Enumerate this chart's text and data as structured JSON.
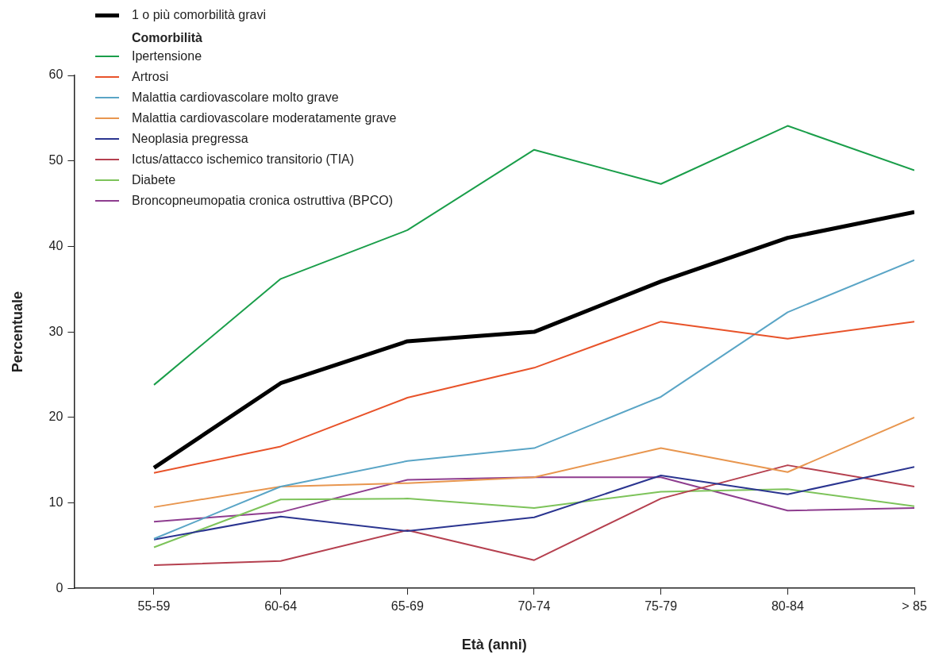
{
  "chart_data": {
    "type": "line",
    "xlabel": "Età (anni)",
    "ylabel": "Percentuale",
    "legend_title": "Comorbilità",
    "legend": "top left",
    "grid": false,
    "marker": "none",
    "line_style": "solid",
    "categories": [
      "55-59",
      "60-64",
      "65-69",
      "70-74",
      "75-79",
      "80-84",
      "> 85"
    ],
    "ylim": [
      0,
      60
    ],
    "yticks": [
      0,
      10,
      20,
      30,
      40,
      50,
      60
    ],
    "series": [
      {
        "name": "1 o più comorbilità gravi",
        "color": "#000000",
        "values": [
          14.1,
          24.0,
          28.9,
          30.0,
          35.9,
          41.0,
          44.0
        ]
      },
      {
        "name": "Ipertensione",
        "color": "#1a9e4a",
        "values": [
          23.8,
          36.2,
          41.9,
          51.3,
          47.3,
          54.1,
          48.9
        ]
      },
      {
        "name": "Artrosi",
        "color": "#e8532a",
        "values": [
          13.5,
          16.6,
          22.3,
          25.8,
          31.2,
          29.2,
          31.2
        ]
      },
      {
        "name": "Malattia cardiovascolare molto grave",
        "color": "#5aa5c6",
        "values": [
          5.8,
          11.9,
          14.9,
          16.4,
          22.4,
          32.3,
          38.4
        ]
      },
      {
        "name": "Malattia cardiovascolare moderatamente grave",
        "color": "#e8964f",
        "values": [
          9.5,
          11.9,
          12.3,
          13.0,
          16.4,
          13.6,
          20.0
        ]
      },
      {
        "name": "Neoplasia pregressa",
        "color": "#2b3590",
        "values": [
          5.7,
          8.4,
          6.7,
          8.3,
          13.2,
          11.0,
          14.2
        ]
      },
      {
        "name": "Ictus/attacco ischemico transitorio (TIA)",
        "color": "#b5404f",
        "values": [
          2.7,
          3.2,
          6.8,
          3.3,
          10.5,
          14.4,
          11.9
        ]
      },
      {
        "name": "Diabete",
        "color": "#7dc35a",
        "values": [
          4.8,
          10.4,
          10.5,
          9.4,
          11.3,
          11.6,
          9.6
        ]
      },
      {
        "name": "Broncopneumopatia cronica ostruttiva (BPCO)",
        "color": "#8e3d8f",
        "values": [
          7.8,
          8.9,
          12.7,
          13.0,
          13.0,
          9.1,
          9.4
        ]
      }
    ]
  }
}
